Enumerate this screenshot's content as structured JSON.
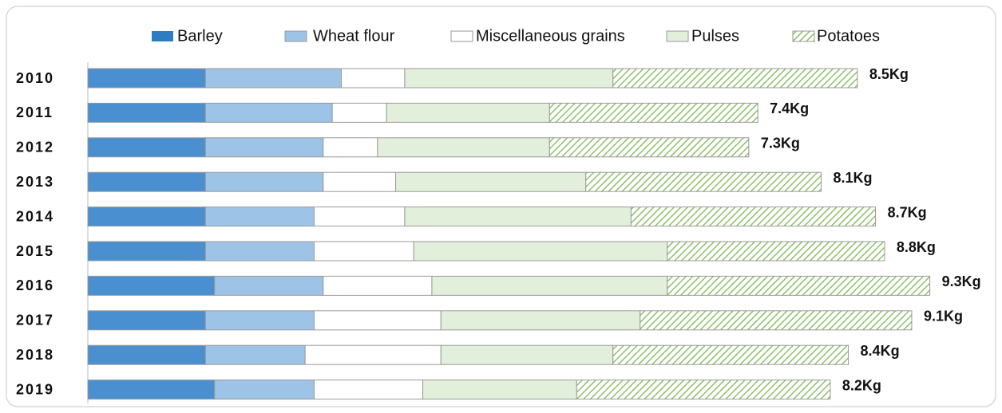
{
  "chart_data": {
    "type": "stacked-barh",
    "categories": [
      "2010",
      "2011",
      "2012",
      "2013",
      "2014",
      "2015",
      "2016",
      "2017",
      "2018",
      "2019"
    ],
    "series": [
      {
        "name": "Barley",
        "color": "#4a8fd0",
        "values": [
          1.3,
          1.3,
          1.3,
          1.3,
          1.3,
          1.3,
          1.4,
          1.3,
          1.3,
          1.4
        ]
      },
      {
        "name": "Wheat flour",
        "color": "#9dc3e6",
        "values": [
          1.5,
          1.4,
          1.3,
          1.3,
          1.2,
          1.2,
          1.2,
          1.2,
          1.1,
          1.1
        ]
      },
      {
        "name": "Miscellaneous grains",
        "color": "#ffffff",
        "values": [
          0.7,
          0.6,
          0.6,
          0.8,
          1.0,
          1.1,
          1.2,
          1.4,
          1.5,
          1.2
        ]
      },
      {
        "name": "Pulses",
        "color": "#e2efda",
        "values": [
          2.3,
          1.8,
          1.9,
          2.1,
          2.5,
          2.8,
          2.6,
          2.2,
          1.9,
          1.7
        ]
      },
      {
        "name": "Potatoes",
        "color": "#8cc068",
        "hatch": true,
        "values": [
          2.7,
          2.3,
          2.2,
          2.6,
          2.7,
          2.4,
          2.9,
          3.0,
          2.6,
          2.8
        ]
      }
    ],
    "totals": [
      8.5,
      7.4,
      7.3,
      8.1,
      8.7,
      8.8,
      9.3,
      9.1,
      8.4,
      8.2
    ],
    "total_labels": [
      "8.5Kg",
      "7.4Kg",
      "7.3Kg",
      "8.1Kg",
      "8.7Kg",
      "8.8Kg",
      "9.3Kg",
      "9.1Kg",
      "8.4Kg",
      "8.2Kg"
    ],
    "legend": "top"
  }
}
